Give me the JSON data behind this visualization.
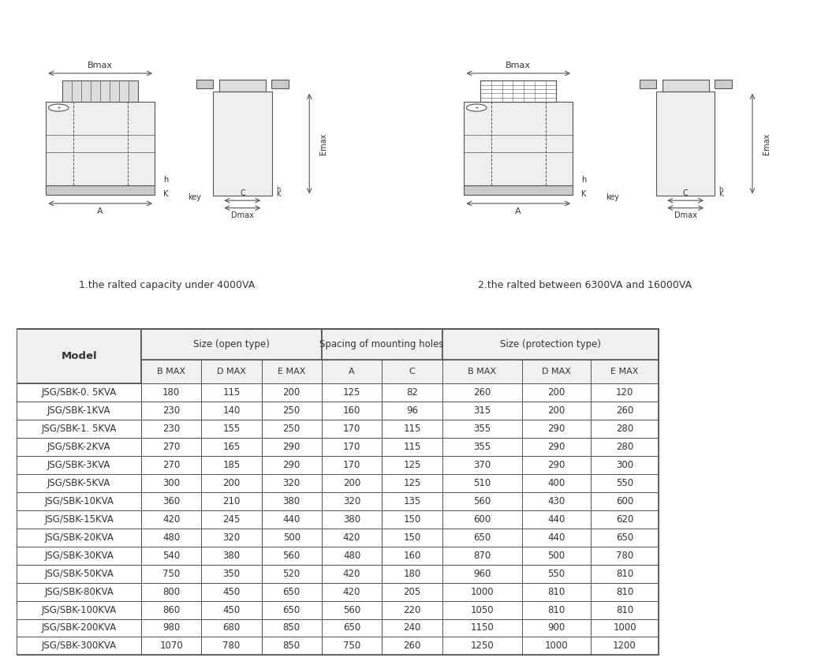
{
  "caption1": "1.the ralted capacity under 4000VA",
  "caption2": "2.the ralted between 6300VA and 16000VA",
  "table_headers_row1": [
    "Model",
    "Size (open type)",
    "",
    "",
    "Spacing of mounting holes",
    "",
    "Size (protection type)",
    "",
    ""
  ],
  "table_headers_row2": [
    "",
    "B MAX",
    "D MAX",
    "E MAX",
    "A",
    "C",
    "B MAX",
    "D MAX",
    "E MAX"
  ],
  "table_data": [
    [
      "JSG/SBK-0. 5KVA",
      "180",
      "115",
      "200",
      "125",
      "82",
      "260",
      "200",
      "120"
    ],
    [
      "JSG/SBK-1KVA",
      "230",
      "140",
      "250",
      "160",
      "96",
      "315",
      "200",
      "260"
    ],
    [
      "JSG/SBK-1. 5KVA",
      "230",
      "155",
      "250",
      "170",
      "115",
      "355",
      "290",
      "280"
    ],
    [
      "JSG/SBK-2KVA",
      "270",
      "165",
      "290",
      "170",
      "115",
      "355",
      "290",
      "280"
    ],
    [
      "JSG/SBK-3KVA",
      "270",
      "185",
      "290",
      "170",
      "125",
      "370",
      "290",
      "300"
    ],
    [
      "JSG/SBK-5KVA",
      "300",
      "200",
      "320",
      "200",
      "125",
      "510",
      "400",
      "550"
    ],
    [
      "JSG/SBK-10KVA",
      "360",
      "210",
      "380",
      "320",
      "135",
      "560",
      "430",
      "600"
    ],
    [
      "JSG/SBK-15KVA",
      "420",
      "245",
      "440",
      "380",
      "150",
      "600",
      "440",
      "620"
    ],
    [
      "JSG/SBK-20KVA",
      "480",
      "320",
      "500",
      "420",
      "150",
      "650",
      "440",
      "650"
    ],
    [
      "JSG/SBK-30KVA",
      "540",
      "380",
      "560",
      "480",
      "160",
      "870",
      "500",
      "780"
    ],
    [
      "JSG/SBK-50KVA",
      "750",
      "350",
      "520",
      "420",
      "180",
      "960",
      "550",
      "810"
    ],
    [
      "JSG/SBK-80KVA",
      "800",
      "450",
      "650",
      "420",
      "205",
      "1000",
      "810",
      "810"
    ],
    [
      "JSG/SBK-100KVA",
      "860",
      "450",
      "650",
      "560",
      "220",
      "1050",
      "810",
      "810"
    ],
    [
      "JSG/SBK-200KVA",
      "980",
      "680",
      "850",
      "650",
      "240",
      "1150",
      "900",
      "1000"
    ],
    [
      "JSG/SBK-300KVA",
      "1070",
      "780",
      "850",
      "750",
      "260",
      "1250",
      "1000",
      "1200"
    ]
  ],
  "bg_color": "#ffffff",
  "table_border_color": "#555555",
  "header_bg": "#e8e8e8",
  "text_color": "#333333"
}
